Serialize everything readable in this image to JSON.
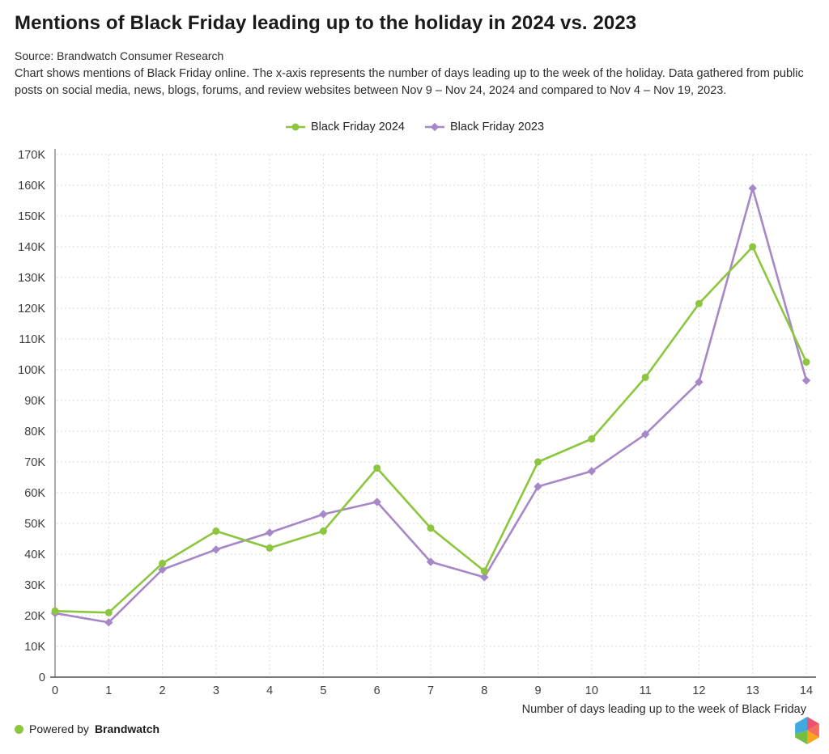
{
  "header": {
    "title": "Mentions of Black Friday leading up to the holiday in 2024 vs. 2023",
    "source": "Source: Brandwatch Consumer Research",
    "description": "Chart shows mentions of Black Friday online. The x-axis represents the number of days leading up to the week of the holiday. Data gathered from public posts on social media, news, blogs, forums, and review websites between Nov 9 – Nov 24, 2024 and compared to Nov 4 – Nov 19, 2023."
  },
  "legend": [
    {
      "label": "Black Friday 2024",
      "color": "#8CC63E",
      "marker": "circle"
    },
    {
      "label": "Black Friday 2023",
      "color": "#A687C7",
      "marker": "diamond"
    }
  ],
  "chart_data": {
    "type": "line",
    "x": [
      0,
      1,
      2,
      3,
      4,
      5,
      6,
      7,
      8,
      9,
      10,
      11,
      12,
      13,
      14
    ],
    "xticks": [
      "0",
      "1",
      "2",
      "3",
      "4",
      "5",
      "6",
      "7",
      "8",
      "9",
      "10",
      "11",
      "12",
      "13",
      "14"
    ],
    "yticks": [
      "0",
      "10K",
      "20K",
      "30K",
      "40K",
      "50K",
      "60K",
      "70K",
      "80K",
      "90K",
      "100K",
      "110K",
      "120K",
      "130K",
      "140K",
      "150K",
      "160K",
      "170K"
    ],
    "series": [
      {
        "name": "Black Friday 2024",
        "color": "#8CC63E",
        "marker": "circle",
        "values": [
          21500,
          21000,
          37000,
          47500,
          42000,
          47500,
          68000,
          48500,
          34500,
          70000,
          77500,
          97500,
          121500,
          140000,
          102500
        ]
      },
      {
        "name": "Black Friday 2023",
        "color": "#A687C7",
        "marker": "diamond",
        "values": [
          20800,
          17800,
          35000,
          41500,
          47000,
          53000,
          57000,
          37500,
          32500,
          62000,
          67000,
          79000,
          96000,
          159000,
          96500
        ]
      }
    ],
    "xlabel": "Number of days leading up to the week of Black Friday",
    "ylabel": "",
    "ylim": [
      0,
      170000
    ],
    "ytick_step": 10000,
    "grid": true,
    "legend_position": "top-center",
    "grid_color": "#d8d8d8",
    "axis_color_y": "#8f8f8f",
    "axis_color_x": "#4d4d4d",
    "tick_label_color": "#3d3d3d"
  },
  "footer": {
    "powered_by": "Powered by",
    "brand": "Brandwatch",
    "dot_color": "#8CC63E",
    "logo_colors": [
      "#3FA9E0",
      "#EE5170",
      "#F2705B",
      "#F9A61A",
      "#72BF44"
    ]
  }
}
